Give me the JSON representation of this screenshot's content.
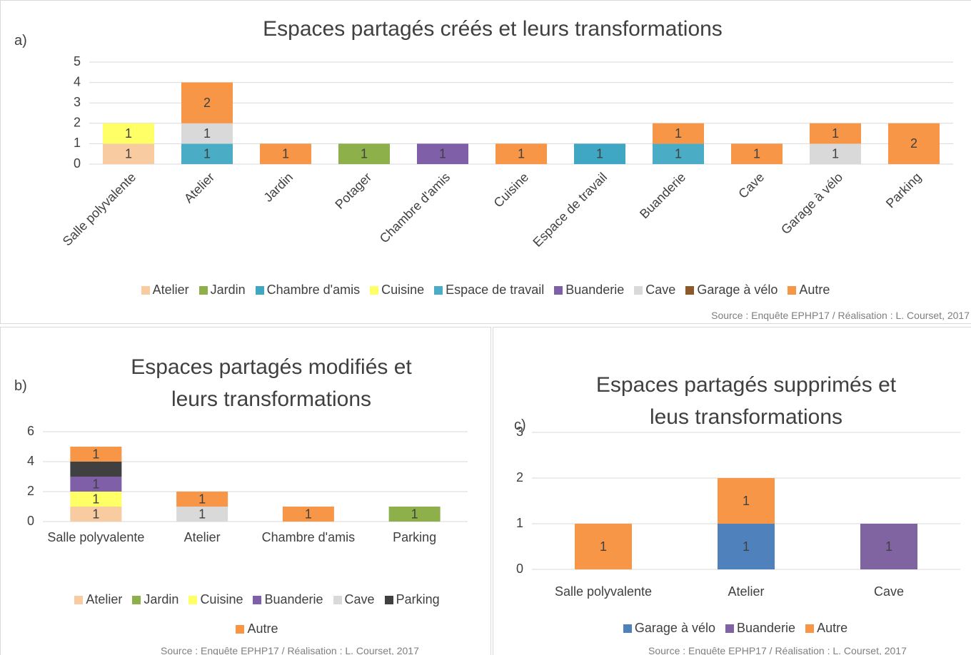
{
  "chart_data": [
    {
      "type": "bar",
      "panel_label": "a)",
      "title": "Espaces partagés créés et leurs transformations",
      "categories": [
        "Salle polyvalente",
        "Atelier",
        "Jardin",
        "Potager",
        "Chambre d'amis",
        "Cuisine",
        "Espace de travail",
        "Buanderie",
        "Cave",
        "Garage à vélo",
        "Parking"
      ],
      "series": [
        {
          "name": "Atelier",
          "color": "#f8cba0",
          "values": [
            1,
            null,
            null,
            null,
            null,
            null,
            null,
            null,
            null,
            null,
            null
          ]
        },
        {
          "name": "Jardin",
          "color": "#8db04a",
          "values": [
            null,
            null,
            null,
            1,
            null,
            null,
            null,
            null,
            null,
            null,
            null
          ]
        },
        {
          "name": "Chambre d'amis",
          "color": "#3fa7c3",
          "values": [
            null,
            null,
            null,
            null,
            null,
            null,
            1,
            null,
            null,
            null,
            null
          ]
        },
        {
          "name": "Cuisine",
          "color": "#ffff66",
          "values": [
            1,
            null,
            null,
            null,
            null,
            null,
            null,
            null,
            null,
            null,
            null
          ]
        },
        {
          "name": "Espace de travail",
          "color": "#4bacc6",
          "values": [
            null,
            1,
            null,
            null,
            null,
            null,
            null,
            1,
            null,
            null,
            null
          ]
        },
        {
          "name": "Buanderie",
          "color": "#7f5fa8",
          "values": [
            null,
            null,
            null,
            null,
            1,
            null,
            null,
            null,
            null,
            null,
            null
          ]
        },
        {
          "name": "Cave",
          "color": "#d9d9d9",
          "values": [
            null,
            1,
            null,
            null,
            null,
            null,
            null,
            null,
            null,
            1,
            null
          ]
        },
        {
          "name": "Garage à vélo",
          "color": "#8c5a2a",
          "values": [
            null,
            null,
            null,
            null,
            null,
            null,
            null,
            null,
            null,
            null,
            null
          ]
        },
        {
          "name": "Autre",
          "color": "#f79646",
          "values": [
            null,
            2,
            1,
            null,
            null,
            1,
            null,
            1,
            1,
            1,
            2
          ]
        }
      ],
      "ylim": [
        0,
        5
      ],
      "yticks": [
        0,
        1,
        2,
        3,
        4,
        5
      ],
      "grid": true,
      "stacked": true,
      "source": "Source : Enquête EPHP17 / Réalisation : L. Courset, 2017"
    },
    {
      "type": "bar",
      "panel_label": "b)",
      "title": "Espaces partagés modifiés et leurs transformations",
      "categories": [
        "Salle polyvalente",
        "Atelier",
        "Chambre d'amis",
        "Parking"
      ],
      "series": [
        {
          "name": "Atelier",
          "color": "#f8cba0",
          "values": [
            1,
            null,
            null,
            null
          ]
        },
        {
          "name": "Jardin",
          "color": "#8db04a",
          "values": [
            null,
            null,
            null,
            1
          ]
        },
        {
          "name": "Cuisine",
          "color": "#ffff66",
          "values": [
            1,
            null,
            null,
            null
          ]
        },
        {
          "name": "Buanderie",
          "color": "#7f5fa8",
          "values": [
            1,
            null,
            null,
            null
          ]
        },
        {
          "name": "Cave",
          "color": "#d9d9d9",
          "values": [
            null,
            1,
            null,
            null
          ]
        },
        {
          "name": "Parking",
          "color": "#404040",
          "values": [
            1,
            null,
            null,
            null
          ]
        },
        {
          "name": "Autre",
          "color": "#f79646",
          "values": [
            1,
            1,
            1,
            null
          ]
        }
      ],
      "ylim": [
        0,
        6
      ],
      "yticks": [
        0,
        2,
        4,
        6
      ],
      "grid": true,
      "stacked": true,
      "source": "Source : Enquête EPHP17 / Réalisation : L. Courset, 2017"
    },
    {
      "type": "bar",
      "panel_label": "c)",
      "title": "Espaces partagés supprimés et leus transformations",
      "categories": [
        "Salle polyvalente",
        "Atelier",
        "Cave"
      ],
      "series": [
        {
          "name": "Garage à vélo",
          "color": "#4f81bd",
          "values": [
            null,
            1,
            null
          ]
        },
        {
          "name": "Buanderie",
          "color": "#8064a2",
          "values": [
            null,
            null,
            1
          ]
        },
        {
          "name": "Autre",
          "color": "#f79646",
          "values": [
            1,
            1,
            null
          ]
        }
      ],
      "ylim": [
        0,
        3
      ],
      "yticks": [
        0,
        1,
        2,
        3
      ],
      "grid": true,
      "stacked": true,
      "source": "Source : Enquête EPHP17 / Réalisation : L. Courset, 2017"
    }
  ]
}
